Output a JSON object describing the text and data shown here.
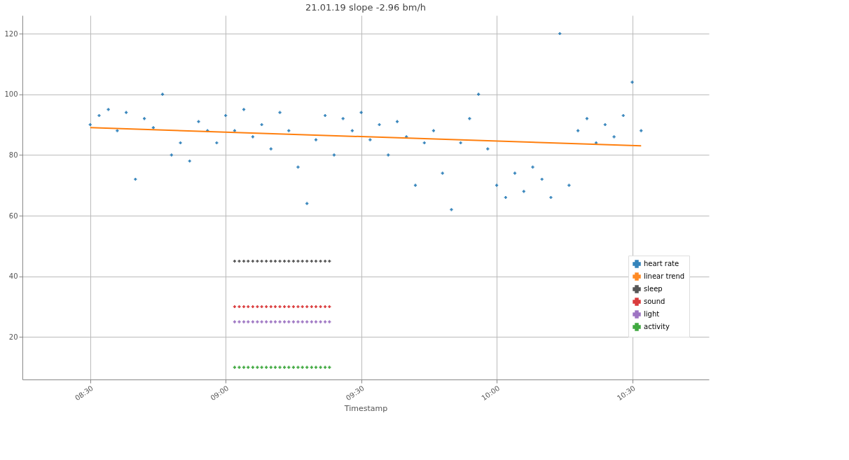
{
  "chart_data": {
    "type": "scatter",
    "title": "21.01.19 slope -2.96 bm/h",
    "xlabel": "Timestamp",
    "xlim": [
      8.25,
      10.783
    ],
    "xticks": [
      {
        "value": 8.5,
        "label": "08:30"
      },
      {
        "value": 9.0,
        "label": "09:00"
      },
      {
        "value": 9.5,
        "label": "09:30"
      },
      {
        "value": 10.0,
        "label": "10:00"
      },
      {
        "value": 10.5,
        "label": "10:30"
      }
    ],
    "ylim": [
      6,
      126
    ],
    "yticks": [
      20,
      40,
      60,
      80,
      100,
      120
    ],
    "grid": true,
    "legend": "right",
    "marker": "cross",
    "series": [
      {
        "name": "heart rate",
        "color": "#1f77b4",
        "x": [
          8.5,
          8.533,
          8.567,
          8.6,
          8.633,
          8.667,
          8.7,
          8.733,
          8.767,
          8.8,
          8.833,
          8.867,
          8.9,
          8.933,
          8.967,
          9.0,
          9.033,
          9.067,
          9.1,
          9.133,
          9.167,
          9.2,
          9.233,
          9.267,
          9.3,
          9.333,
          9.367,
          9.4,
          9.433,
          9.467,
          9.5,
          9.533,
          9.567,
          9.6,
          9.633,
          9.667,
          9.7,
          9.733,
          9.767,
          9.8,
          9.833,
          9.867,
          9.9,
          9.933,
          9.967,
          10.0,
          10.033,
          10.067,
          10.1,
          10.133,
          10.167,
          10.2,
          10.233,
          10.267,
          10.3,
          10.333,
          10.367,
          10.4,
          10.433,
          10.467,
          10.5,
          10.533
        ],
        "values": [
          90,
          93,
          95,
          88,
          94,
          72,
          92,
          89,
          100,
          80,
          84,
          78,
          91,
          88,
          84,
          93,
          88,
          95,
          86,
          90,
          82,
          94,
          88,
          76,
          64,
          85,
          93,
          80,
          92,
          88,
          94,
          85,
          90,
          80,
          91,
          86,
          70,
          84,
          88,
          74,
          62,
          84,
          92,
          100,
          82,
          70,
          66,
          74,
          68,
          76,
          72,
          66,
          120,
          70,
          88,
          92,
          84,
          90,
          86,
          93,
          104,
          88
        ]
      },
      {
        "name": "linear trend",
        "type": "line",
        "marker": "none",
        "color": "#ff7f0e",
        "x": [
          8.5,
          10.533
        ],
        "values": [
          89,
          83
        ]
      },
      {
        "name": "sleep",
        "color": "#444444",
        "x": [
          9.033,
          9.05,
          9.067,
          9.083,
          9.1,
          9.117,
          9.133,
          9.15,
          9.167,
          9.183,
          9.2,
          9.217,
          9.233,
          9.25,
          9.267,
          9.283,
          9.3,
          9.317,
          9.333,
          9.35,
          9.367,
          9.383
        ],
        "values": [
          45,
          45,
          45,
          45,
          45,
          45,
          45,
          45,
          45,
          45,
          45,
          45,
          45,
          45,
          45,
          45,
          45,
          45,
          45,
          45,
          45,
          45
        ]
      },
      {
        "name": "sound",
        "color": "#d62728",
        "x": [
          9.033,
          9.05,
          9.067,
          9.083,
          9.1,
          9.117,
          9.133,
          9.15,
          9.167,
          9.183,
          9.2,
          9.217,
          9.233,
          9.25,
          9.267,
          9.283,
          9.3,
          9.317,
          9.333,
          9.35,
          9.367,
          9.383
        ],
        "values": [
          30,
          30,
          30,
          30,
          30,
          30,
          30,
          30,
          30,
          30,
          30,
          30,
          30,
          30,
          30,
          30,
          30,
          30,
          30,
          30,
          30,
          30
        ]
      },
      {
        "name": "light",
        "color": "#9467bd",
        "x": [
          9.033,
          9.05,
          9.067,
          9.083,
          9.1,
          9.117,
          9.133,
          9.15,
          9.167,
          9.183,
          9.2,
          9.217,
          9.233,
          9.25,
          9.267,
          9.283,
          9.3,
          9.317,
          9.333,
          9.35,
          9.367,
          9.383
        ],
        "values": [
          25,
          25,
          25,
          25,
          25,
          25,
          25,
          25,
          25,
          25,
          25,
          25,
          25,
          25,
          25,
          25,
          25,
          25,
          25,
          25,
          25,
          25
        ]
      },
      {
        "name": "activity",
        "color": "#2ca02c",
        "x": [
          9.033,
          9.05,
          9.067,
          9.083,
          9.1,
          9.117,
          9.133,
          9.15,
          9.167,
          9.183,
          9.2,
          9.217,
          9.233,
          9.25,
          9.267,
          9.283,
          9.3,
          9.317,
          9.333,
          9.35,
          9.367,
          9.383
        ],
        "values": [
          10,
          10,
          10,
          10,
          10,
          10,
          10,
          10,
          10,
          10,
          10,
          10,
          10,
          10,
          10,
          10,
          10,
          10,
          10,
          10,
          10,
          10
        ]
      }
    ]
  }
}
